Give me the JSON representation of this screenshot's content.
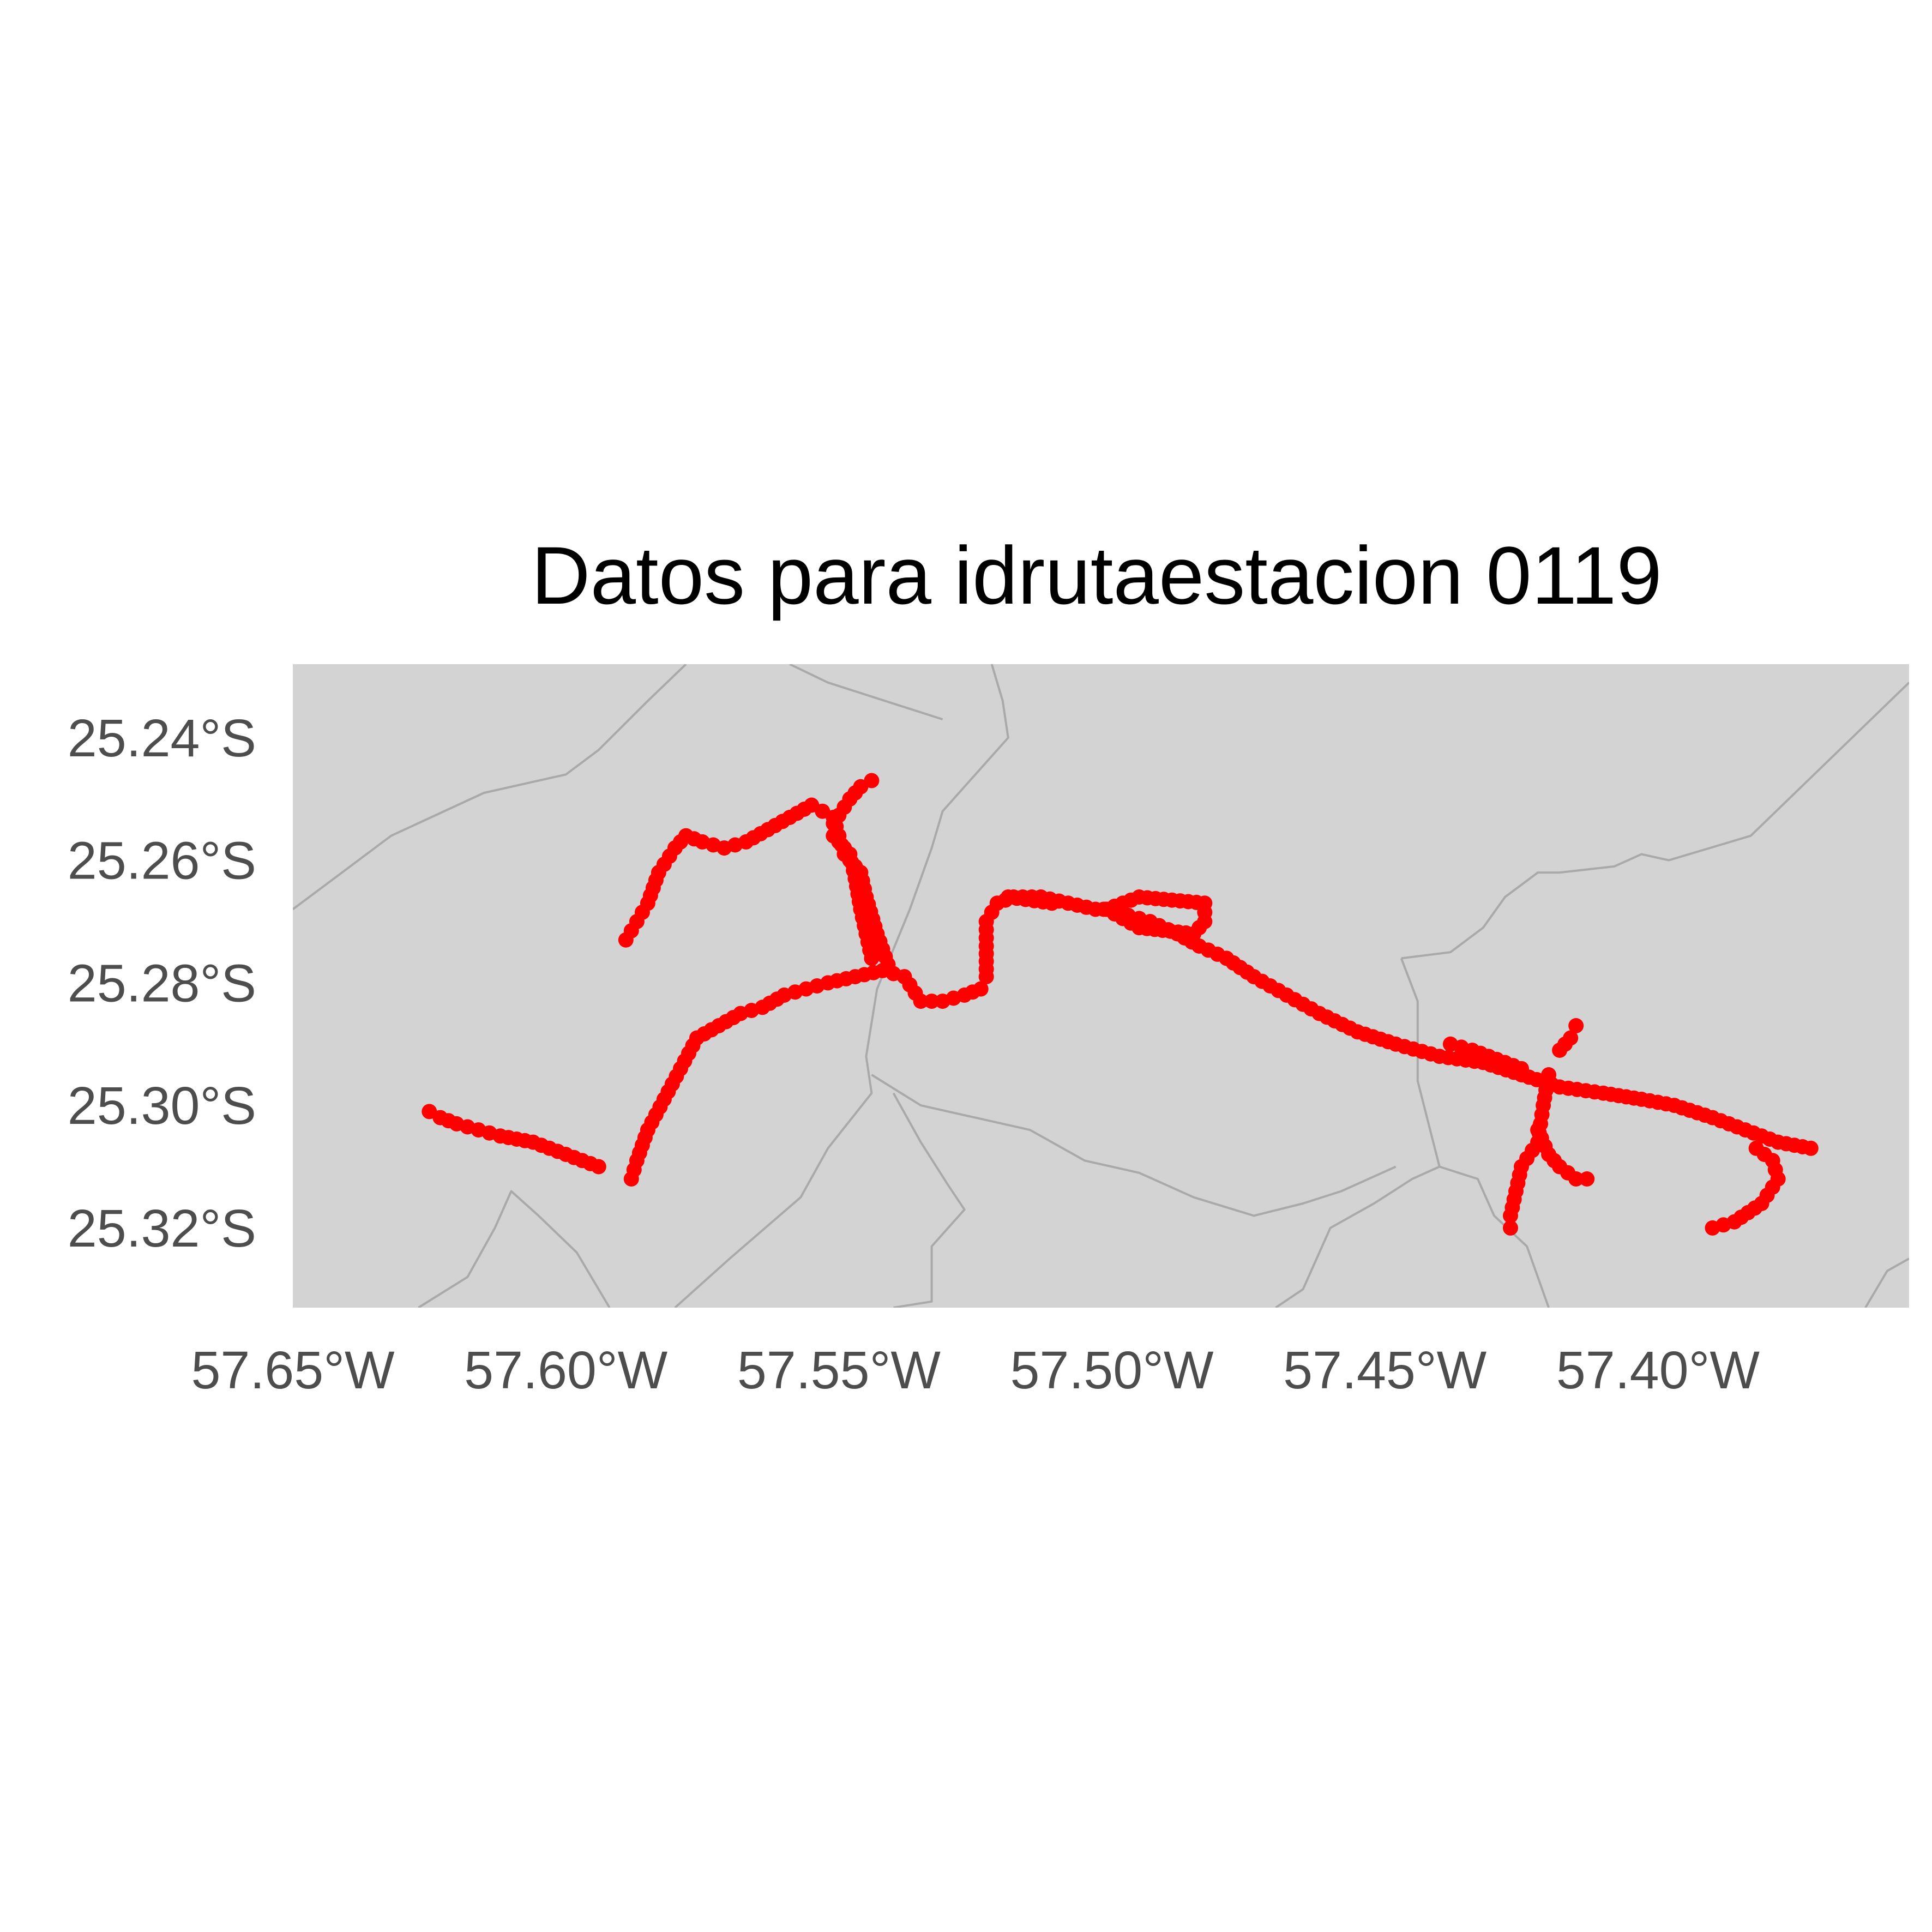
{
  "title": "Datos para idrutaestacion 0119",
  "x_ticks": [
    {
      "label": "57.65°W",
      "lon": -57.65
    },
    {
      "label": "57.60°W",
      "lon": -57.6
    },
    {
      "label": "57.55°W",
      "lon": -57.55
    },
    {
      "label": "57.50°W",
      "lon": -57.5
    },
    {
      "label": "57.45°W",
      "lon": -57.45
    },
    {
      "label": "57.40°W",
      "lon": -57.4
    }
  ],
  "y_ticks": [
    {
      "label": "25.24°S",
      "lat": -25.24
    },
    {
      "label": "25.26°S",
      "lat": -25.26
    },
    {
      "label": "25.28°S",
      "lat": -25.28
    },
    {
      "label": "25.30°S",
      "lat": -25.3
    },
    {
      "label": "25.32°S",
      "lat": -25.32
    }
  ],
  "chart_data": {
    "type": "scatter",
    "title": "Datos para idrutaestacion 0119",
    "xlabel": "",
    "ylabel": "",
    "xlim": [
      -57.65,
      -57.354
    ],
    "ylim": [
      -25.333,
      -25.228
    ],
    "grid": false,
    "background_color": "#d3d3d3",
    "boundary_color": "#a9a9a9",
    "point_color": "#ff0000",
    "boundaries": [
      [
        [
          -57.65,
          -25.268
        ],
        [
          -57.632,
          -25.256
        ],
        [
          -57.615,
          -25.249
        ],
        [
          -57.6,
          -25.246
        ],
        [
          -57.594,
          -25.242
        ],
        [
          -57.585,
          -25.234
        ],
        [
          -57.578,
          -25.228
        ]
      ],
      [
        [
          -57.559,
          -25.228
        ],
        [
          -57.552,
          -25.231
        ],
        [
          -57.538,
          -25.235
        ],
        [
          -57.531,
          -25.237
        ]
      ],
      [
        [
          -57.522,
          -25.228
        ],
        [
          -57.52,
          -25.234
        ],
        [
          -57.519,
          -25.24
        ],
        [
          -57.525,
          -25.246
        ],
        [
          -57.531,
          -25.252
        ],
        [
          -57.533,
          -25.258
        ],
        [
          -57.537,
          -25.268
        ],
        [
          -57.543,
          -25.281
        ],
        [
          -57.545,
          -25.292
        ],
        [
          -57.544,
          -25.298
        ],
        [
          -57.552,
          -25.307
        ],
        [
          -57.557,
          -25.315
        ],
        [
          -57.57,
          -25.325
        ],
        [
          -57.58,
          -25.333
        ]
      ],
      [
        [
          -57.544,
          -25.295
        ],
        [
          -57.535,
          -25.3
        ],
        [
          -57.525,
          -25.302
        ],
        [
          -57.515,
          -25.304
        ],
        [
          -57.505,
          -25.309
        ],
        [
          -57.495,
          -25.311
        ],
        [
          -57.485,
          -25.315
        ],
        [
          -57.474,
          -25.318
        ],
        [
          -57.465,
          -25.316
        ],
        [
          -57.458,
          -25.314
        ],
        [
          -57.448,
          -25.31
        ]
      ],
      [
        [
          -57.54,
          -25.298
        ],
        [
          -57.535,
          -25.306
        ],
        [
          -57.53,
          -25.313
        ],
        [
          -57.527,
          -25.317
        ],
        [
          -57.53,
          -25.32
        ],
        [
          -57.533,
          -25.323
        ],
        [
          -57.533,
          -25.332
        ],
        [
          -57.54,
          -25.333
        ]
      ],
      [
        [
          -57.627,
          -25.333
        ],
        [
          -57.618,
          -25.328
        ],
        [
          -57.613,
          -25.32
        ],
        [
          -57.61,
          -25.314
        ],
        [
          -57.605,
          -25.318
        ],
        [
          -57.598,
          -25.324
        ],
        [
          -57.592,
          -25.333
        ]
      ],
      [
        [
          -57.47,
          -25.333
        ],
        [
          -57.465,
          -25.33
        ],
        [
          -57.46,
          -25.32
        ],
        [
          -57.452,
          -25.316
        ],
        [
          -57.445,
          -25.312
        ],
        [
          -57.44,
          -25.31
        ],
        [
          -57.433,
          -25.312
        ],
        [
          -57.43,
          -25.318
        ],
        [
          -57.424,
          -25.323
        ],
        [
          -57.42,
          -25.333
        ]
      ],
      [
        [
          -57.447,
          -25.276
        ],
        [
          -57.444,
          -25.283
        ],
        [
          -57.444,
          -25.296
        ],
        [
          -57.442,
          -25.303
        ],
        [
          -57.44,
          -25.31
        ]
      ],
      [
        [
          -57.447,
          -25.276
        ],
        [
          -57.438,
          -25.275
        ],
        [
          -57.432,
          -25.271
        ],
        [
          -57.428,
          -25.266
        ],
        [
          -57.422,
          -25.262
        ],
        [
          -57.418,
          -25.262
        ],
        [
          -57.408,
          -25.261
        ],
        [
          -57.403,
          -25.259
        ],
        [
          -57.398,
          -25.26
        ],
        [
          -57.383,
          -25.256
        ],
        [
          -57.354,
          -25.231
        ]
      ],
      [
        [
          -57.354,
          -25.325
        ],
        [
          -57.358,
          -25.327
        ],
        [
          -57.362,
          -25.333
        ]
      ]
    ],
    "series": [
      {
        "segments": [
          [
            [
              -57.625,
              -25.301
            ],
            [
              -57.623,
              -25.302
            ],
            [
              -57.62,
              -25.303
            ],
            [
              -57.616,
              -25.304
            ],
            [
              -57.612,
              -25.305
            ],
            [
              -57.606,
              -25.306
            ],
            [
              -57.6,
              -25.308
            ],
            [
              -57.594,
              -25.31
            ]
          ],
          [
            [
              -57.588,
              -25.312
            ],
            [
              -57.587,
              -25.309
            ],
            [
              -57.585,
              -25.304
            ],
            [
              -57.582,
              -25.299
            ],
            [
              -57.579,
              -25.294
            ],
            [
              -57.576,
              -25.289
            ],
            [
              -57.572,
              -25.287
            ],
            [
              -57.568,
              -25.285
            ],
            [
              -57.564,
              -25.284
            ],
            [
              -57.56,
              -25.282
            ],
            [
              -57.556,
              -25.281
            ],
            [
              -57.552,
              -25.28
            ],
            [
              -57.547,
              -25.279
            ],
            [
              -57.542,
              -25.278
            ],
            [
              -57.538,
              -25.279
            ],
            [
              -57.535,
              -25.283
            ],
            [
              -57.531,
              -25.283
            ],
            [
              -57.527,
              -25.282
            ],
            [
              -57.524,
              -25.281
            ],
            [
              -57.523,
              -25.279
            ],
            [
              -57.523,
              -25.274
            ],
            [
              -57.523,
              -25.27
            ],
            [
              -57.521,
              -25.267
            ],
            [
              -57.518,
              -25.266
            ],
            [
              -57.513,
              -25.266
            ],
            [
              -57.508,
              -25.267
            ],
            [
              -57.503,
              -25.268
            ],
            [
              -57.5,
              -25.268
            ],
            [
              -57.497,
              -25.269
            ],
            [
              -57.493,
              -25.27
            ],
            [
              -57.488,
              -25.272
            ],
            [
              -57.484,
              -25.274
            ],
            [
              -57.479,
              -25.276
            ],
            [
              -57.474,
              -25.279
            ],
            [
              -57.468,
              -25.282
            ],
            [
              -57.462,
              -25.285
            ],
            [
              -57.455,
              -25.288
            ],
            [
              -57.448,
              -25.29
            ],
            [
              -57.44,
              -25.292
            ],
            [
              -57.432,
              -25.293
            ],
            [
              -57.425,
              -25.295
            ],
            [
              -57.418,
              -25.297
            ],
            [
              -57.41,
              -25.298
            ],
            [
              -57.403,
              -25.299
            ],
            [
              -57.397,
              -25.3
            ],
            [
              -57.39,
              -25.302
            ],
            [
              -57.384,
              -25.304
            ],
            [
              -57.378,
              -25.306
            ],
            [
              -57.372,
              -25.307
            ]
          ],
          [
            [
              -57.541,
              -25.277
            ],
            [
              -57.543,
              -25.272
            ],
            [
              -57.545,
              -25.266
            ],
            [
              -57.546,
              -25.262
            ],
            [
              -57.549,
              -25.259
            ],
            [
              -57.55,
              -25.256
            ],
            [
              -57.551,
              -25.253
            ],
            [
              -57.553,
              -25.252
            ],
            [
              -57.555,
              -25.251
            ],
            [
              -57.559,
              -25.253
            ],
            [
              -57.563,
              -25.255
            ],
            [
              -57.567,
              -25.257
            ],
            [
              -57.571,
              -25.258
            ],
            [
              -57.575,
              -25.257
            ],
            [
              -57.578,
              -25.256
            ],
            [
              -57.58,
              -25.258
            ],
            [
              -57.583,
              -25.262
            ],
            [
              -57.585,
              -25.267
            ],
            [
              -57.587,
              -25.27
            ],
            [
              -57.589,
              -25.273
            ]
          ],
          [
            [
              -57.551,
              -25.256
            ],
            [
              -57.548,
              -25.259
            ],
            [
              -57.547,
              -25.263
            ],
            [
              -57.546,
              -25.268
            ],
            [
              -57.545,
              -25.272
            ],
            [
              -57.544,
              -25.276
            ]
          ],
          [
            [
              -57.551,
              -25.254
            ],
            [
              -57.548,
              -25.25
            ],
            [
              -57.546,
              -25.248
            ],
            [
              -57.544,
              -25.247
            ]
          ],
          [
            [
              -57.519,
              -25.266
            ],
            [
              -57.511,
              -25.267
            ]
          ],
          [
            [
              -57.501,
              -25.268
            ],
            [
              -57.495,
              -25.271
            ],
            [
              -57.485,
              -25.272
            ],
            [
              -57.483,
              -25.27
            ],
            [
              -57.483,
              -25.267
            ],
            [
              -57.495,
              -25.266
            ],
            [
              -57.501,
              -25.268
            ]
          ],
          [
            [
              -57.42,
              -25.295
            ],
            [
              -57.421,
              -25.3
            ],
            [
              -57.422,
              -25.306
            ],
            [
              -57.425,
              -25.31
            ],
            [
              -57.426,
              -25.314
            ],
            [
              -57.427,
              -25.318
            ],
            [
              -57.427,
              -25.32
            ]
          ],
          [
            [
              -57.422,
              -25.304
            ],
            [
              -57.42,
              -25.308
            ],
            [
              -57.418,
              -25.31
            ],
            [
              -57.415,
              -25.312
            ],
            [
              -57.413,
              -25.312
            ]
          ],
          [
            [
              -57.438,
              -25.29
            ],
            [
              -57.434,
              -25.291
            ],
            [
              -57.428,
              -25.293
            ],
            [
              -57.425,
              -25.294
            ]
          ],
          [
            [
              -57.418,
              -25.291
            ],
            [
              -57.416,
              -25.289
            ],
            [
              -57.415,
              -25.287
            ]
          ],
          [
            [
              -57.382,
              -25.307
            ],
            [
              -57.379,
              -25.309
            ],
            [
              -57.378,
              -25.312
            ],
            [
              -57.381,
              -25.316
            ],
            [
              -57.386,
              -25.319
            ],
            [
              -57.39,
              -25.32
            ]
          ]
        ]
      }
    ]
  }
}
